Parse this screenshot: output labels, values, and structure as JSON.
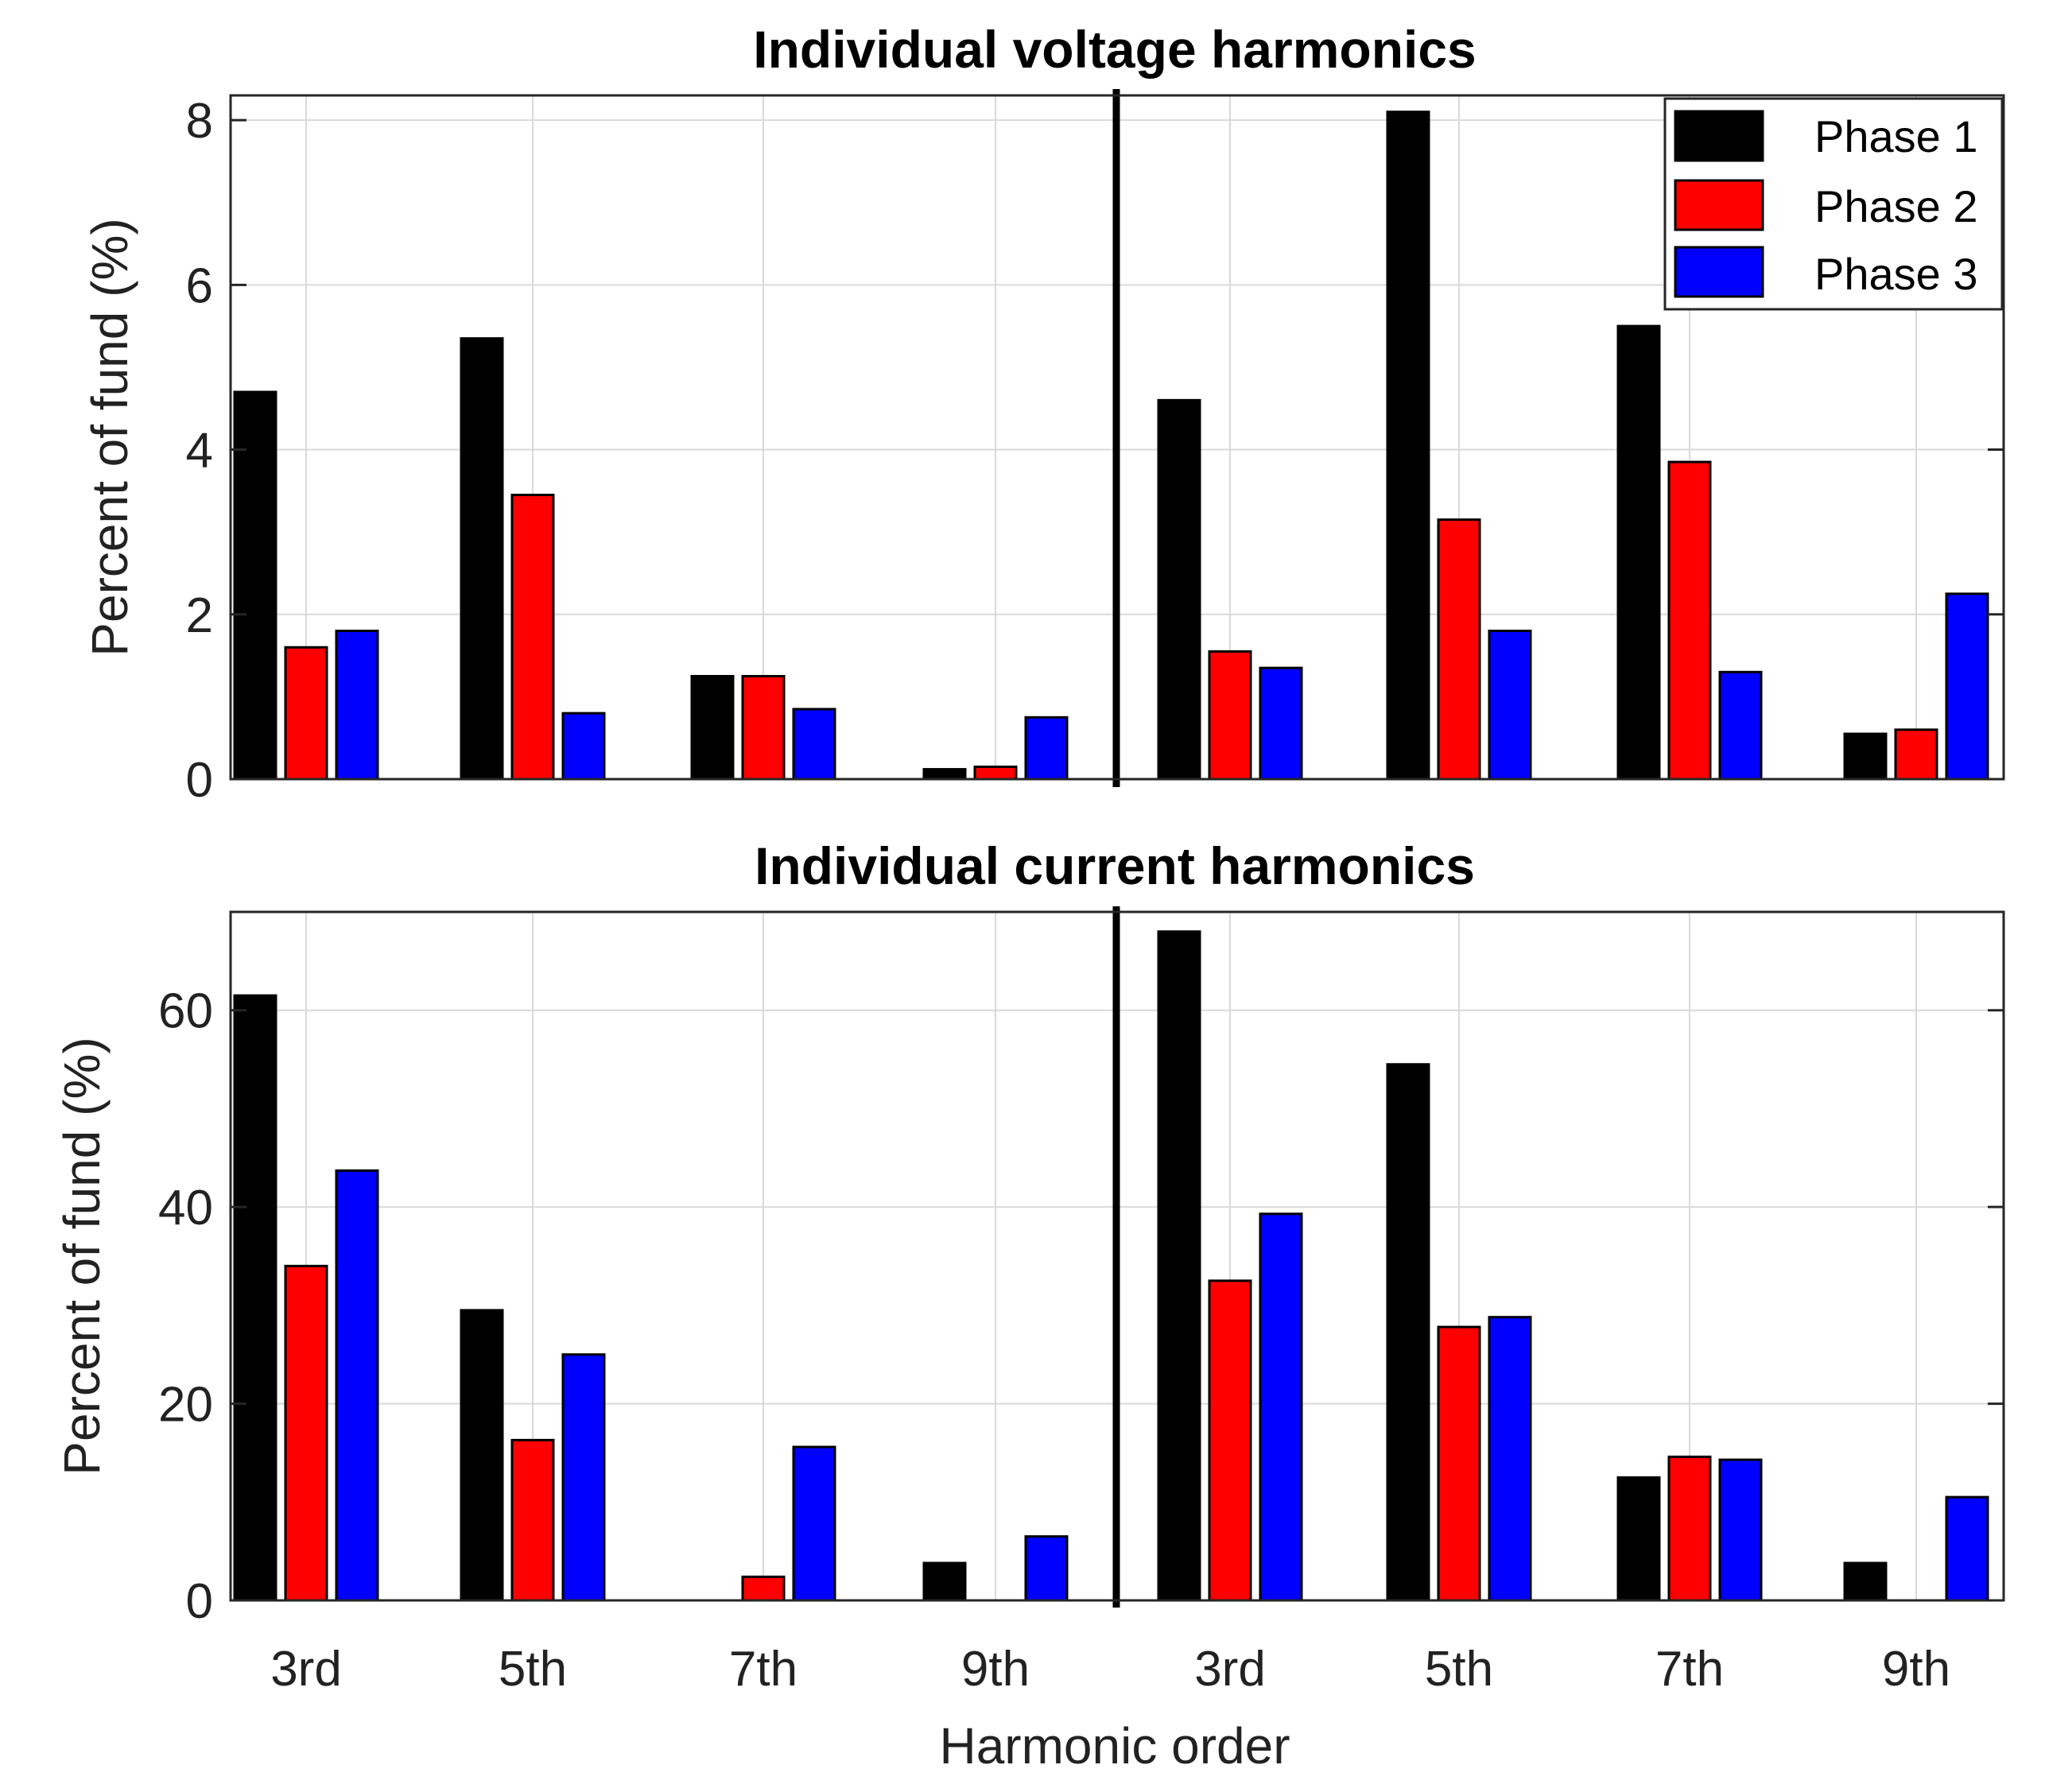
{
  "chart_data": [
    {
      "type": "bar",
      "title": "Individual voltage harmonics",
      "xlabel": "",
      "ylabel": "Percent of fund (%)",
      "ylim": [
        0,
        8.3
      ],
      "yticks": [
        0,
        2,
        4,
        6,
        8
      ],
      "categories": [
        "3rd",
        "5th",
        "7th",
        "9th",
        "3rd",
        "5th",
        "7th",
        "9th"
      ],
      "series": [
        {
          "name": "Phase 1",
          "color": "#000000",
          "values": [
            4.7,
            5.35,
            1.25,
            0.12,
            4.6,
            8.1,
            5.5,
            0.55
          ]
        },
        {
          "name": "Phase 2",
          "color": "#ff0000",
          "values": [
            1.6,
            3.45,
            1.25,
            0.15,
            1.55,
            3.15,
            3.85,
            0.6
          ]
        },
        {
          "name": "Phase 3",
          "color": "#0000ff",
          "values": [
            1.8,
            0.8,
            0.85,
            0.75,
            1.35,
            1.8,
            1.3,
            2.25
          ]
        }
      ],
      "legend": {
        "placement": "top-right",
        "entries": [
          "Phase 1",
          "Phase 2",
          "Phase 3"
        ]
      },
      "grid": true
    },
    {
      "type": "bar",
      "title": "Individual current harmonics",
      "xlabel": "Harmonic order",
      "ylabel": "Percent of fund (%)",
      "ylim": [
        0,
        70
      ],
      "yticks": [
        0,
        20,
        40,
        60
      ],
      "categories": [
        "3rd",
        "5th",
        "7th",
        "9th",
        "3rd",
        "5th",
        "7th",
        "9th"
      ],
      "series": [
        {
          "name": "Phase 1",
          "color": "#000000",
          "values": [
            61.5,
            29.5,
            0,
            3.8,
            68,
            54.5,
            12.5,
            3.8
          ]
        },
        {
          "name": "Phase 2",
          "color": "#ff0000",
          "values": [
            34,
            16.3,
            2.4,
            0,
            32.5,
            27.8,
            14.6,
            0
          ]
        },
        {
          "name": "Phase 3",
          "color": "#0000ff",
          "values": [
            43.7,
            25,
            15.6,
            6.5,
            39.3,
            28.8,
            14.3,
            10.5
          ]
        }
      ],
      "grid": true
    }
  ]
}
